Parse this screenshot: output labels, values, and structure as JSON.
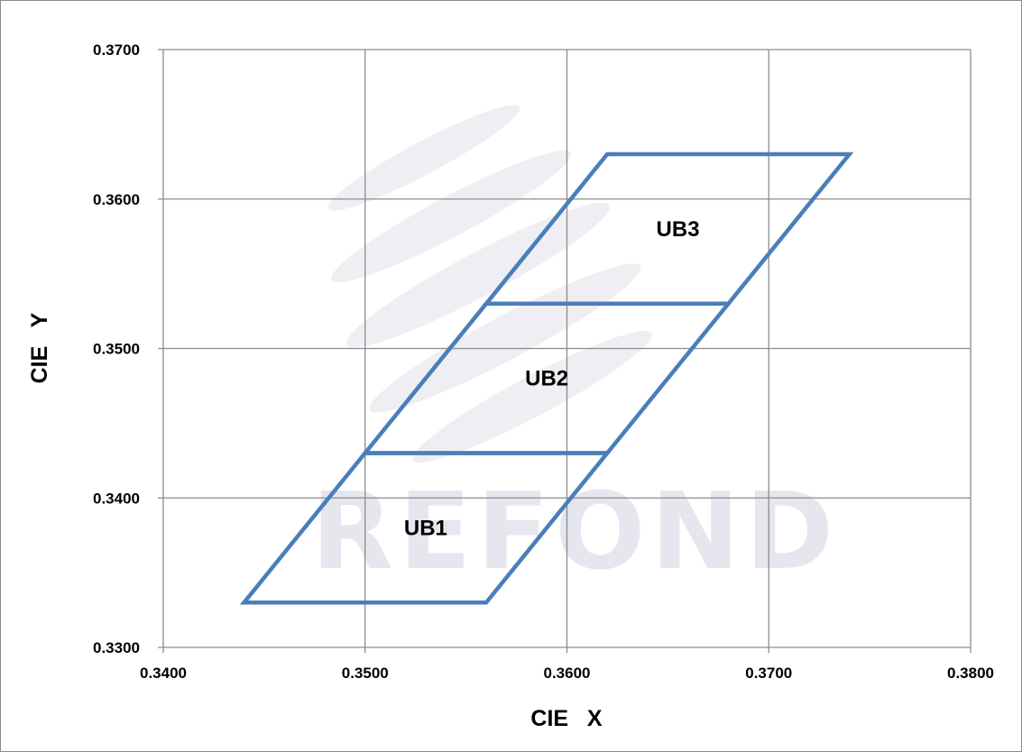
{
  "chart_data": {
    "type": "line",
    "title": "",
    "xlabel": "CIE   X",
    "ylabel": "CIE   Y",
    "xlim": [
      0.34,
      0.38
    ],
    "ylim": [
      0.33,
      0.37
    ],
    "xticks": [
      "0.3400",
      "0.3500",
      "0.3600",
      "0.3700",
      "0.3800"
    ],
    "yticks": [
      "0.3300",
      "0.3400",
      "0.3500",
      "0.3600",
      "0.3700"
    ],
    "grid": true,
    "line_color": "#4a7ebb",
    "grid_color": "#8c8c8c",
    "watermark": "REFOND",
    "regions": [
      {
        "name": "UB1",
        "vertices": [
          [
            0.344,
            0.333
          ],
          [
            0.356,
            0.333
          ],
          [
            0.362,
            0.343
          ],
          [
            0.35,
            0.343
          ]
        ],
        "label_pos": [
          0.353,
          0.338
        ]
      },
      {
        "name": "UB2",
        "vertices": [
          [
            0.35,
            0.343
          ],
          [
            0.362,
            0.343
          ],
          [
            0.368,
            0.353
          ],
          [
            0.356,
            0.353
          ]
        ],
        "label_pos": [
          0.359,
          0.348
        ]
      },
      {
        "name": "UB3",
        "vertices": [
          [
            0.356,
            0.353
          ],
          [
            0.368,
            0.353
          ],
          [
            0.374,
            0.363
          ],
          [
            0.362,
            0.363
          ]
        ],
        "label_pos": [
          0.3655,
          0.358
        ]
      }
    ]
  }
}
